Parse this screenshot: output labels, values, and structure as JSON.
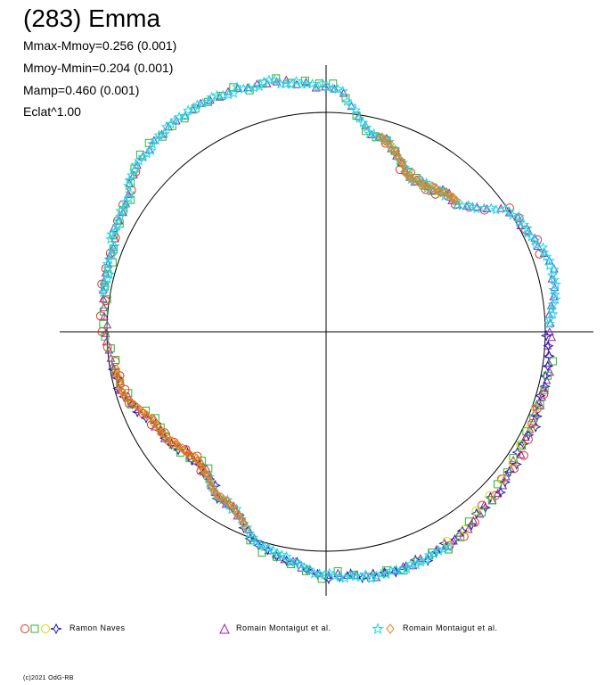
{
  "title": "(283) Emma",
  "stats": [
    "Mmax-Mmoy=0.256 (0.001)",
    "Mmoy-Mmin=0.204 (0.001)",
    "Mamp=0.460 (0.001)",
    "Eclat^1.00"
  ],
  "legend": [
    {
      "label": "Ramon Naves",
      "markers": [
        "circle",
        "square",
        "circle",
        "star4"
      ],
      "colors": [
        "#e8302a",
        "#2fb52f",
        "#d8d800",
        "#1a1ab0"
      ]
    },
    {
      "label": "Romain Montaigut et al.",
      "markers": [
        "triangle"
      ],
      "colors": [
        "#9b1fb5"
      ]
    },
    {
      "label": "Romain Montaigut et al.",
      "markers": [
        "star5",
        "diamond"
      ],
      "colors": [
        "#1fd6e8",
        "#f07a10"
      ]
    }
  ],
  "credit": "(c)2021 OdG-RB",
  "chart_data": {
    "type": "scatter",
    "description_type": "polar lightcurve",
    "reference_circle_radius": 1.0,
    "grid": false,
    "series": [
      {
        "name": "Ramon Naves",
        "color": "#e8302a",
        "marker": "circle",
        "phase_range": [
          0.0,
          1.0
        ]
      },
      {
        "name": "Romain Montaigut et al.",
        "color": "#9b1fb5",
        "marker": "triangle",
        "phase_range": [
          0.0,
          1.0
        ]
      },
      {
        "name": "Romain Montaigut et al.",
        "color": "#1fd6e8",
        "marker": "star5",
        "phase_range": [
          0.0,
          1.0
        ]
      }
    ],
    "curve_radius_by_angle_deg": [
      [
        0,
        1.02
      ],
      [
        15,
        1.07
      ],
      [
        30,
        1.02
      ],
      [
        45,
        0.84
      ],
      [
        60,
        0.8
      ],
      [
        75,
        0.92
      ],
      [
        90,
        1.12
      ],
      [
        105,
        1.17
      ],
      [
        120,
        1.19
      ],
      [
        135,
        1.16
      ],
      [
        150,
        1.08
      ],
      [
        165,
        1.03
      ],
      [
        180,
        1.01
      ],
      [
        195,
        0.97
      ],
      [
        210,
        0.88
      ],
      [
        225,
        0.83
      ],
      [
        240,
        0.9
      ],
      [
        255,
        1.03
      ],
      [
        270,
        1.11
      ],
      [
        285,
        1.14
      ],
      [
        300,
        1.12
      ],
      [
        315,
        1.07
      ],
      [
        330,
        1.04
      ],
      [
        345,
        1.03
      ],
      [
        360,
        1.02
      ]
    ]
  }
}
